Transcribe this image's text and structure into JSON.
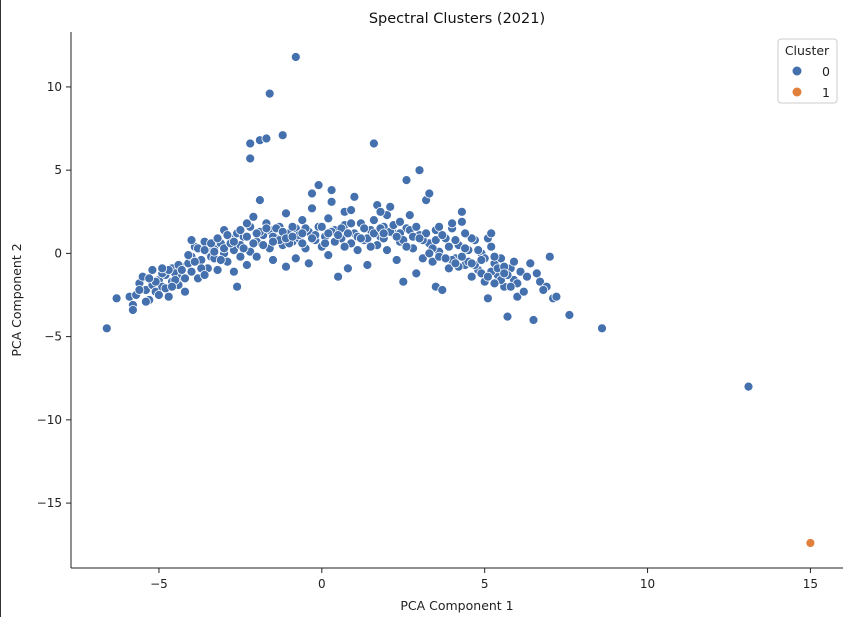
{
  "chart_data": {
    "type": "scatter",
    "title": "Spectral Clusters (2021)",
    "xlabel": "PCA Component 1",
    "ylabel": "PCA Component 2",
    "xlim": [
      -7.7,
      16.0
    ],
    "ylim": [
      -18.9,
      13.3
    ],
    "xticks": [
      -5,
      0,
      5,
      10,
      15
    ],
    "yticks": [
      -15,
      -10,
      -5,
      0,
      5,
      10
    ],
    "grid": false,
    "legend": {
      "title": "Cluster",
      "placement": "top-right",
      "entries": [
        "0",
        "1"
      ]
    },
    "series": [
      {
        "name": "0",
        "color": "#4470ae",
        "points": [
          [
            -6.6,
            -4.5
          ],
          [
            -6.3,
            -2.7
          ],
          [
            -5.9,
            -2.6
          ],
          [
            -5.8,
            -3.1
          ],
          [
            -5.8,
            -3.4
          ],
          [
            -5.7,
            -2.5
          ],
          [
            -5.6,
            -1.8
          ],
          [
            -5.5,
            -1.4
          ],
          [
            -5.4,
            -2.2
          ],
          [
            -5.3,
            -2.8
          ],
          [
            -5.2,
            -1.9
          ],
          [
            -5.2,
            -1.0
          ],
          [
            -5.1,
            -2.3
          ],
          [
            -5.0,
            -1.6
          ],
          [
            -4.9,
            -2.0
          ],
          [
            -4.8,
            -1.3
          ],
          [
            -4.7,
            -2.6
          ],
          [
            -4.6,
            -0.9
          ],
          [
            -4.6,
            -1.7
          ],
          [
            -4.5,
            -1.2
          ],
          [
            -4.4,
            -1.9
          ],
          [
            -4.3,
            -0.8
          ],
          [
            -4.3,
            -1.4
          ],
          [
            -4.2,
            -2.3
          ],
          [
            -4.1,
            -0.6
          ],
          [
            -4.0,
            -1.1
          ],
          [
            -4.0,
            -0.2
          ],
          [
            -3.9,
            0.4
          ],
          [
            -3.8,
            -1.5
          ],
          [
            -3.7,
            -0.4
          ],
          [
            -3.6,
            0.7
          ],
          [
            -3.5,
            -0.9
          ],
          [
            -3.5,
            0.1
          ],
          [
            -3.4,
            -0.2
          ],
          [
            -3.3,
            0.3
          ],
          [
            -3.2,
            -1.0
          ],
          [
            -3.1,
            0.6
          ],
          [
            -3.0,
            1.4
          ],
          [
            -3.0,
            0.0
          ],
          [
            -2.9,
            -0.5
          ],
          [
            -2.8,
            0.9
          ],
          [
            -2.7,
            0.2
          ],
          [
            -2.7,
            -1.1
          ],
          [
            -2.6,
            1.2
          ],
          [
            -2.6,
            -2.0
          ],
          [
            -2.5,
            0.5
          ],
          [
            -2.4,
            1.0
          ],
          [
            -2.3,
            -0.7
          ],
          [
            -2.2,
            1.6
          ],
          [
            -2.2,
            0.1
          ],
          [
            -2.1,
            2.2
          ],
          [
            -2.0,
            0.7
          ],
          [
            -2.0,
            -0.2
          ],
          [
            -1.9,
            3.2
          ],
          [
            -1.8,
            1.1
          ],
          [
            -1.7,
            1.8
          ],
          [
            -1.6,
            0.3
          ],
          [
            -1.6,
            1.4
          ],
          [
            -1.5,
            -0.4
          ],
          [
            -1.4,
            0.9
          ],
          [
            -1.3,
            1.6
          ],
          [
            -1.2,
            0.5
          ],
          [
            -1.1,
            2.4
          ],
          [
            -1.1,
            -0.8
          ],
          [
            -1.0,
            1.2
          ],
          [
            -0.9,
            0.7
          ],
          [
            -0.8,
            -0.3
          ],
          [
            -0.8,
            1.5
          ],
          [
            -0.7,
            0.9
          ],
          [
            -0.6,
            2.0
          ],
          [
            -0.5,
            0.3
          ],
          [
            -0.4,
            1.3
          ],
          [
            -0.4,
            -0.6
          ],
          [
            -0.3,
            2.7
          ],
          [
            -0.3,
            3.6
          ],
          [
            -0.2,
            0.8
          ],
          [
            -0.1,
            4.1
          ],
          [
            -0.1,
            1.6
          ],
          [
            0.0,
            0.4
          ],
          [
            0.1,
            1.0
          ],
          [
            0.2,
            2.1
          ],
          [
            0.2,
            -0.1
          ],
          [
            0.3,
            3.1
          ],
          [
            0.3,
            3.8
          ],
          [
            0.4,
            1.4
          ],
          [
            0.5,
            -1.4
          ],
          [
            0.6,
            0.9
          ],
          [
            0.7,
            1.7
          ],
          [
            0.7,
            2.5
          ],
          [
            0.8,
            -0.9
          ],
          [
            0.9,
            0.6
          ],
          [
            1.0,
            1.2
          ],
          [
            1.0,
            3.4
          ],
          [
            1.1,
            0.2
          ],
          [
            1.2,
            1.8
          ],
          [
            1.3,
            0.8
          ],
          [
            1.4,
            -0.7
          ],
          [
            1.5,
            1.4
          ],
          [
            1.6,
            2.0
          ],
          [
            1.7,
            0.5
          ],
          [
            1.7,
            2.9
          ],
          [
            1.8,
            1.0
          ],
          [
            1.9,
            1.6
          ],
          [
            2.0,
            2.3
          ],
          [
            2.0,
            0.2
          ],
          [
            2.1,
            2.8
          ],
          [
            2.2,
            1.2
          ],
          [
            2.3,
            -0.4
          ],
          [
            2.4,
            0.7
          ],
          [
            2.5,
            -1.7
          ],
          [
            2.6,
            1.5
          ],
          [
            2.6,
            4.4
          ],
          [
            2.7,
            2.3
          ],
          [
            2.8,
            0.3
          ],
          [
            2.9,
            -1.2
          ],
          [
            3.0,
            1.1
          ],
          [
            3.0,
            5.0
          ],
          [
            3.1,
            -0.3
          ],
          [
            3.2,
            3.2
          ],
          [
            3.3,
            0.6
          ],
          [
            3.3,
            3.6
          ],
          [
            3.4,
            -0.5
          ],
          [
            3.5,
            1.4
          ],
          [
            3.5,
            -2.0
          ],
          [
            3.6,
            0.1
          ],
          [
            3.7,
            -2.2
          ],
          [
            3.8,
            0.9
          ],
          [
            3.9,
            -0.9
          ],
          [
            4.0,
            1.5
          ],
          [
            4.1,
            -0.3
          ],
          [
            4.2,
            0.5
          ],
          [
            4.3,
            2.5
          ],
          [
            4.3,
            1.9
          ],
          [
            4.4,
            -0.7
          ],
          [
            4.5,
            0.2
          ],
          [
            4.6,
            -1.4
          ],
          [
            4.7,
            0.8
          ],
          [
            4.8,
            -1.0
          ],
          [
            4.9,
            0.0
          ],
          [
            5.0,
            -1.7
          ],
          [
            5.1,
            -2.7
          ],
          [
            5.2,
            0.4
          ],
          [
            5.3,
            -0.6
          ],
          [
            5.4,
            -1.3
          ],
          [
            5.5,
            -0.3
          ],
          [
            5.6,
            -2.0
          ],
          [
            5.7,
            -3.8
          ],
          [
            5.8,
            -0.9
          ],
          [
            5.9,
            -1.6
          ],
          [
            6.0,
            -2.6
          ],
          [
            6.1,
            -1.1
          ],
          [
            6.2,
            -2.3
          ],
          [
            6.4,
            -0.6
          ],
          [
            6.5,
            -4.0
          ],
          [
            6.7,
            -1.7
          ],
          [
            6.9,
            -2.0
          ],
          [
            7.0,
            -0.2
          ],
          [
            7.1,
            -2.7
          ],
          [
            7.2,
            -2.6
          ],
          [
            7.6,
            -3.7
          ],
          [
            8.6,
            -4.5
          ],
          [
            13.1,
            -8.0
          ],
          [
            -2.2,
            5.7
          ],
          [
            -2.2,
            6.6
          ],
          [
            -1.9,
            6.8
          ],
          [
            -1.7,
            6.9
          ],
          [
            -1.6,
            9.6
          ],
          [
            -1.2,
            7.1
          ],
          [
            -0.8,
            11.8
          ],
          [
            1.6,
            6.6
          ],
          [
            -5.1,
            -1.7
          ],
          [
            -4.9,
            -1.2
          ],
          [
            -4.8,
            -2.1
          ],
          [
            -4.7,
            -1.0
          ],
          [
            -4.5,
            -1.6
          ],
          [
            -4.4,
            -0.7
          ],
          [
            -4.2,
            -1.5
          ],
          [
            -4.1,
            -0.1
          ],
          [
            -4.0,
            0.8
          ],
          [
            -3.8,
            0.3
          ],
          [
            -3.7,
            -0.9
          ],
          [
            -3.6,
            0.2
          ],
          [
            -3.4,
            0.6
          ],
          [
            -3.3,
            -0.3
          ],
          [
            -3.2,
            0.9
          ],
          [
            -3.0,
            0.3
          ],
          [
            -2.9,
            1.1
          ],
          [
            -2.8,
            0.6
          ],
          [
            -2.5,
            1.4
          ],
          [
            -2.4,
            0.3
          ],
          [
            -2.3,
            1.0
          ],
          [
            -2.1,
            0.6
          ],
          [
            -1.9,
            1.3
          ],
          [
            -1.8,
            0.5
          ],
          [
            -1.5,
            1.0
          ],
          [
            -1.4,
            1.5
          ],
          [
            -1.3,
            0.8
          ],
          [
            -1.2,
            1.3
          ],
          [
            -1.0,
            0.6
          ],
          [
            -0.9,
            1.6
          ],
          [
            -0.7,
            1.1
          ],
          [
            -0.6,
            0.6
          ],
          [
            -0.5,
            1.5
          ],
          [
            -0.2,
            1.1
          ],
          [
            0.0,
            1.6
          ],
          [
            0.1,
            0.6
          ],
          [
            0.3,
            1.3
          ],
          [
            0.4,
            0.7
          ],
          [
            0.6,
            1.5
          ],
          [
            0.8,
            1.2
          ],
          [
            0.9,
            1.8
          ],
          [
            1.1,
            1.0
          ],
          [
            1.3,
            1.5
          ],
          [
            1.4,
            0.9
          ],
          [
            1.6,
            1.2
          ],
          [
            1.8,
            1.5
          ],
          [
            1.9,
            0.9
          ],
          [
            2.1,
            1.3
          ],
          [
            2.2,
            1.7
          ],
          [
            2.4,
            1.2
          ],
          [
            2.5,
            0.8
          ],
          [
            2.7,
            1.4
          ],
          [
            2.8,
            1.0
          ],
          [
            2.9,
            1.6
          ],
          [
            3.1,
            0.8
          ],
          [
            3.2,
            1.2
          ],
          [
            3.4,
            0.3
          ],
          [
            3.5,
            0.8
          ],
          [
            3.6,
            -0.2
          ],
          [
            3.7,
            1.1
          ],
          [
            3.9,
            0.4
          ],
          [
            4.0,
            -0.4
          ],
          [
            4.1,
            0.8
          ],
          [
            4.2,
            -0.8
          ],
          [
            4.4,
            0.3
          ],
          [
            4.5,
            -0.5
          ],
          [
            4.6,
            0.9
          ],
          [
            4.7,
            -0.7
          ],
          [
            4.8,
            0.2
          ],
          [
            4.9,
            -1.2
          ],
          [
            5.0,
            -0.3
          ],
          [
            5.1,
            0.9
          ],
          [
            5.2,
            -1.1
          ],
          [
            5.3,
            -0.2
          ],
          [
            5.4,
            -0.9
          ],
          [
            5.5,
            -1.6
          ],
          [
            5.6,
            -0.8
          ],
          [
            5.7,
            -1.3
          ],
          [
            5.9,
            -0.5
          ],
          [
            6.0,
            -1.8
          ],
          [
            -5.6,
            -2.2
          ],
          [
            -5.4,
            -2.9
          ],
          [
            -5.3,
            -1.5
          ],
          [
            -5.0,
            -2.5
          ],
          [
            -4.9,
            -0.9
          ],
          [
            -4.6,
            -2.0
          ],
          [
            -4.3,
            -1.0
          ],
          [
            -3.9,
            -0.5
          ],
          [
            -3.6,
            -1.3
          ],
          [
            -3.3,
            0.1
          ],
          [
            -3.1,
            -0.4
          ],
          [
            -2.7,
            0.7
          ],
          [
            -2.5,
            -0.2
          ],
          [
            -2.3,
            1.8
          ],
          [
            -2.0,
            1.2
          ],
          [
            -1.7,
            1.5
          ],
          [
            -1.5,
            0.7
          ],
          [
            -1.1,
            0.9
          ],
          [
            -0.9,
            1.0
          ],
          [
            -0.6,
            1.2
          ],
          [
            -0.3,
            0.9
          ],
          [
            0.2,
            1.2
          ],
          [
            0.5,
            1.1
          ],
          [
            0.7,
            0.4
          ],
          [
            1.2,
            0.9
          ],
          [
            1.5,
            0.4
          ],
          [
            1.9,
            1.2
          ],
          [
            2.3,
            1.0
          ],
          [
            2.6,
            0.4
          ],
          [
            3.0,
            0.9
          ],
          [
            3.3,
            0.0
          ],
          [
            3.8,
            -0.3
          ],
          [
            4.1,
            -0.6
          ],
          [
            4.3,
            -0.2
          ],
          [
            4.6,
            -0.6
          ],
          [
            4.9,
            -0.4
          ],
          [
            5.1,
            -1.4
          ],
          [
            5.3,
            -1.8
          ],
          [
            5.6,
            -1.2
          ],
          [
            5.8,
            -2.0
          ],
          [
            6.3,
            -1.4
          ],
          [
            6.6,
            -1.2
          ],
          [
            6.8,
            -2.2
          ],
          [
            0.9,
            2.6
          ],
          [
            1.8,
            2.5
          ],
          [
            2.4,
            1.9
          ],
          [
            3.6,
            1.6
          ],
          [
            4.0,
            1.8
          ],
          [
            4.4,
            1.2
          ],
          [
            5.2,
            1.2
          ]
        ]
      },
      {
        "name": "1",
        "color": "#e0803a",
        "points": [
          [
            15.0,
            -17.4
          ]
        ]
      }
    ]
  }
}
